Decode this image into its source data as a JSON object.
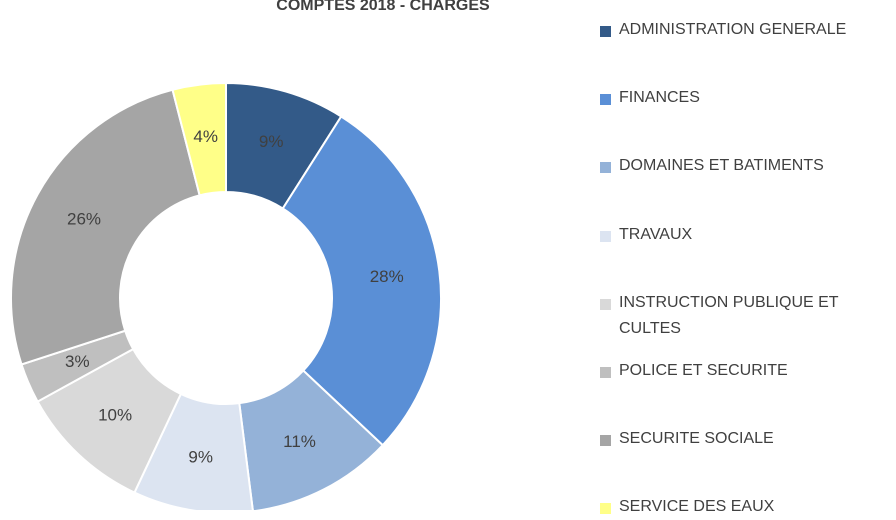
{
  "chart_data": {
    "type": "donut",
    "title": "COMPTES 2018 - CHARGES",
    "categories": [
      "ADMINISTRATION GENERALE",
      "FINANCES",
      "DOMAINES ET BATIMENTS",
      "TRAVAUX",
      "INSTRUCTION PUBLIQUE ET CULTES",
      "POLICE ET SECURITE",
      "SECURITE SOCIALE",
      "SERVICE DES EAUX"
    ],
    "values": [
      9,
      28,
      11,
      9,
      10,
      3,
      26,
      4
    ],
    "value_labels": [
      "9%",
      "28%",
      "11%",
      "9%",
      "10%",
      "3%",
      "26%",
      "4%"
    ],
    "colors": [
      "#335a88",
      "#5a8fd6",
      "#94b2d8",
      "#dce4f1",
      "#d9d9d9",
      "#bfbfbf",
      "#a5a5a5",
      "#ffff88"
    ],
    "legend": "right"
  }
}
